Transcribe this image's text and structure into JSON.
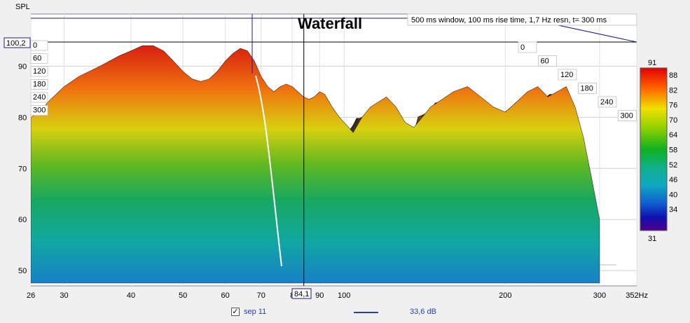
{
  "chart_data": {
    "type": "area",
    "title": "Waterfall",
    "info": "500 ms window, 100 ms rise time,  1,7 Hz resn, t= 300 ms",
    "ylabel": "SPL",
    "xunit": "Hz",
    "x_tick_labels": [
      "26",
      "30",
      "40",
      "50",
      "60",
      "70",
      "8",
      "90",
      "100",
      "200",
      "300",
      "352Hz"
    ],
    "y_tick_labels": [
      "50",
      "60",
      "70",
      "80",
      "90"
    ],
    "ylim": [
      47,
      100.2
    ],
    "xlim": [
      26,
      352
    ],
    "time_tick_labels_front": [
      "0",
      "60",
      "120",
      "180",
      "240",
      "300"
    ],
    "time_tick_labels_back": [
      "0",
      "60",
      "120",
      "180",
      "240",
      "300"
    ],
    "time_unit": "ms",
    "cursor": {
      "x_readout": "84,1",
      "y_readout": "100,2"
    },
    "colorbar": {
      "top": "91",
      "bottom": "31",
      "labels": [
        "88",
        "82",
        "76",
        "70",
        "64",
        "58",
        "52",
        "46",
        "40",
        "34"
      ]
    },
    "series": [
      {
        "name": "sep 11",
        "freq_hz": [
          26,
          27,
          28,
          30,
          32,
          35,
          38,
          40,
          42,
          44,
          46,
          48,
          50,
          52,
          54,
          56,
          58,
          60,
          62,
          64,
          66,
          68,
          70,
          72,
          74,
          76,
          78,
          80,
          82,
          84,
          86,
          88,
          90,
          92,
          95,
          98,
          100,
          104,
          108,
          112,
          116,
          120,
          125,
          130,
          135,
          140,
          145,
          150,
          160,
          170,
          180,
          190,
          200,
          210,
          220,
          230,
          240,
          250,
          260,
          270,
          280,
          290,
          300
        ],
        "spl_db_t0": [
          80,
          81,
          83,
          86,
          88,
          90,
          92,
          93,
          94,
          94,
          93,
          91,
          89,
          87.5,
          87,
          87.5,
          89,
          91,
          92.5,
          93.5,
          93,
          91,
          88,
          86,
          85,
          86,
          86.5,
          86,
          85,
          84,
          83.5,
          84,
          85,
          84.5,
          82,
          80,
          79,
          77,
          80,
          82,
          83,
          84,
          82,
          79,
          78,
          80,
          82,
          83,
          85,
          86,
          84,
          82,
          81,
          83,
          85,
          86,
          84,
          85,
          86,
          82,
          76,
          68,
          60
        ]
      }
    ],
    "legend": {
      "series_name": "sep 11",
      "value": "33,6 dB"
    },
    "colors": {
      "cursor_line": "#1a1a9a",
      "legend_text": "#2a3ea8",
      "grid": "#c8c8c8",
      "plot_bg": "#ffffff"
    }
  }
}
